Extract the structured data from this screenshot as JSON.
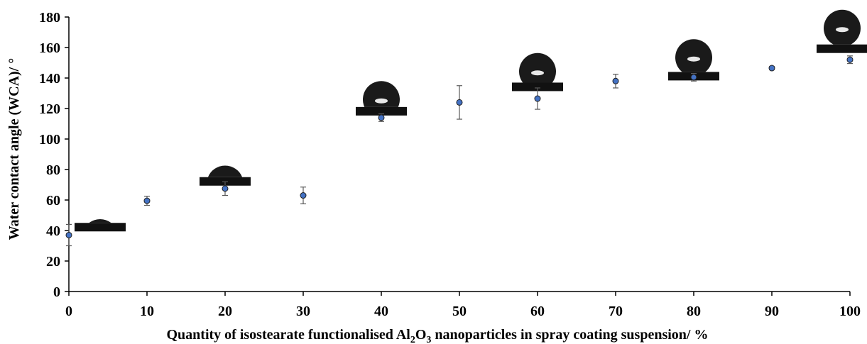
{
  "chart_data": {
    "type": "scatter",
    "title": "",
    "xlabel_parts": [
      "Quantity of isostearate functionalised Al",
      "2",
      "O",
      "3",
      " nanoparticles in spray coating suspension/ %"
    ],
    "ylabel": "Water contact angle (WCA)/ °",
    "xlim": [
      0,
      100
    ],
    "ylim": [
      0,
      180
    ],
    "xticks": [
      "0",
      "10",
      "20",
      "30",
      "40",
      "50",
      "60",
      "70",
      "80",
      "90",
      "100"
    ],
    "yticks": [
      "0",
      "20",
      "40",
      "60",
      "80",
      "100",
      "120",
      "140",
      "160",
      "180"
    ],
    "grid": false,
    "legend": "none",
    "marker_color": "#4472C4",
    "errorbar_color": "#595959",
    "series": [
      {
        "x": [
          0,
          10,
          20,
          30,
          40,
          50,
          60,
          70,
          80,
          90,
          100
        ],
        "y": [
          37,
          59.5,
          67.5,
          63,
          114,
          124,
          126.5,
          138,
          140.5,
          146.5,
          152
        ],
        "err": [
          7,
          3,
          4.5,
          5.5,
          2.5,
          11,
          7,
          4.5,
          2.5,
          1,
          2.5
        ]
      }
    ],
    "droplet_insets": [
      {
        "x": 4,
        "y": 45,
        "angle": 37
      },
      {
        "x": 20,
        "y": 75,
        "angle": 68
      },
      {
        "x": 40,
        "y": 121,
        "angle": 114
      },
      {
        "x": 60,
        "y": 137,
        "angle": 127
      },
      {
        "x": 80,
        "y": 144,
        "angle": 141
      },
      {
        "x": 99,
        "y": 162,
        "angle": 152
      }
    ]
  }
}
